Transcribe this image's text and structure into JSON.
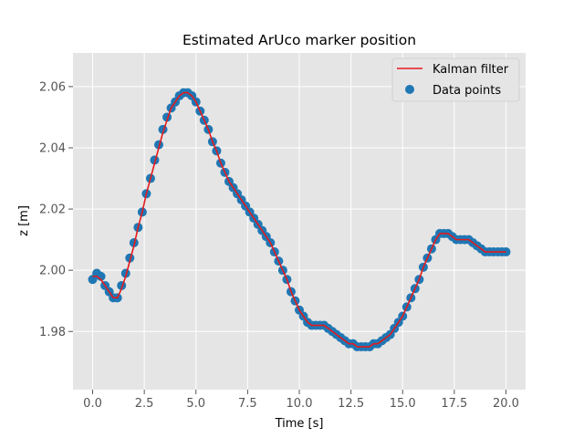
{
  "chart_data": {
    "type": "scatter",
    "title": "Estimated ArUco marker position",
    "xlabel": "Time [s]",
    "ylabel": "z [m]",
    "xlim": [
      -0.95,
      20.95
    ],
    "ylim": [
      1.961,
      2.071
    ],
    "x_ticks": [
      0,
      2.5,
      5,
      7.5,
      10,
      12.5,
      15,
      17.5,
      20
    ],
    "x_tick_labels": [
      "0.0",
      "2.5",
      "5.0",
      "7.5",
      "10.0",
      "12.5",
      "15.0",
      "17.5",
      "20.0"
    ],
    "y_ticks": [
      1.98,
      2.0,
      2.02,
      2.04,
      2.06
    ],
    "y_tick_labels": [
      "1.98",
      "2.00",
      "2.02",
      "2.04",
      "2.06"
    ],
    "grid": true,
    "legend_position": "top-right",
    "colors": {
      "plot_background": "#e5e5e5",
      "grid": "#ffffff",
      "kalman": "#e41a1c",
      "points": "#1f77b4"
    },
    "series": [
      {
        "name": "Data points",
        "kind": "scatter",
        "x": [
          0,
          0.2,
          0.4,
          0.6,
          0.8,
          1.0,
          1.2,
          1.4,
          1.6,
          1.8,
          2.0,
          2.2,
          2.4,
          2.6,
          2.8,
          3.0,
          3.2,
          3.4,
          3.6,
          3.8,
          4.0,
          4.2,
          4.4,
          4.6,
          4.8,
          5.0,
          5.2,
          5.4,
          5.6,
          5.8,
          6.0,
          6.2,
          6.4,
          6.6,
          6.8,
          7.0,
          7.2,
          7.4,
          7.6,
          7.8,
          8.0,
          8.2,
          8.4,
          8.6,
          8.8,
          9.0,
          9.2,
          9.4,
          9.6,
          9.8,
          10.0,
          10.2,
          10.4,
          10.6,
          10.8,
          11.0,
          11.2,
          11.4,
          11.6,
          11.8,
          12.0,
          12.2,
          12.4,
          12.6,
          12.8,
          13.0,
          13.2,
          13.4,
          13.6,
          13.8,
          14.0,
          14.2,
          14.4,
          14.6,
          14.8,
          15.0,
          15.2,
          15.4,
          15.6,
          15.8,
          16.0,
          16.2,
          16.4,
          16.6,
          16.8,
          17.0,
          17.2,
          17.4,
          17.6,
          17.8,
          18.0,
          18.2,
          18.4,
          18.6,
          18.8,
          19.0,
          19.2,
          19.4,
          19.6,
          19.8,
          20.0
        ],
        "y": [
          1.997,
          1.999,
          1.998,
          1.995,
          1.993,
          1.991,
          1.991,
          1.995,
          1.999,
          2.004,
          2.009,
          2.014,
          2.019,
          2.025,
          2.03,
          2.036,
          2.041,
          2.046,
          2.05,
          2.053,
          2.055,
          2.057,
          2.058,
          2.058,
          2.057,
          2.055,
          2.052,
          2.049,
          2.046,
          2.042,
          2.039,
          2.035,
          2.032,
          2.029,
          2.027,
          2.025,
          2.023,
          2.021,
          2.019,
          2.017,
          2.015,
          2.013,
          2.011,
          2.009,
          2.006,
          2.003,
          2.0,
          1.997,
          1.993,
          1.99,
          1.987,
          1.985,
          1.983,
          1.982,
          1.982,
          1.982,
          1.982,
          1.981,
          1.98,
          1.979,
          1.978,
          1.977,
          1.976,
          1.976,
          1.975,
          1.975,
          1.975,
          1.975,
          1.976,
          1.976,
          1.977,
          1.978,
          1.979,
          1.981,
          1.983,
          1.985,
          1.988,
          1.991,
          1.994,
          1.997,
          2.001,
          2.004,
          2.007,
          2.01,
          2.012,
          2.012,
          2.012,
          2.011,
          2.01,
          2.01,
          2.01,
          2.01,
          2.009,
          2.008,
          2.007,
          2.006,
          2.006,
          2.006,
          2.006,
          2.006,
          2.006
        ]
      },
      {
        "name": "Kalman filter",
        "kind": "line",
        "x": [
          0,
          0.2,
          0.4,
          0.6,
          0.8,
          1.0,
          1.2,
          1.4,
          1.6,
          1.8,
          2.0,
          2.2,
          2.4,
          2.6,
          2.8,
          3.0,
          3.2,
          3.4,
          3.6,
          3.8,
          4.0,
          4.2,
          4.4,
          4.6,
          4.8,
          5.0,
          5.2,
          5.4,
          5.6,
          5.8,
          6.0,
          6.2,
          6.4,
          6.6,
          6.8,
          7.0,
          7.2,
          7.4,
          7.6,
          7.8,
          8.0,
          8.2,
          8.4,
          8.6,
          8.8,
          9.0,
          9.2,
          9.4,
          9.6,
          9.8,
          10.0,
          10.2,
          10.4,
          10.6,
          10.8,
          11.0,
          11.2,
          11.4,
          11.6,
          11.8,
          12.0,
          12.2,
          12.4,
          12.6,
          12.8,
          13.0,
          13.2,
          13.4,
          13.6,
          13.8,
          14.0,
          14.2,
          14.4,
          14.6,
          14.8,
          15.0,
          15.2,
          15.4,
          15.6,
          15.8,
          16.0,
          16.2,
          16.4,
          16.6,
          16.8,
          17.0,
          17.2,
          17.4,
          17.6,
          17.8,
          18.0,
          18.2,
          18.4,
          18.6,
          18.8,
          19.0,
          19.2,
          19.4,
          19.6,
          19.8,
          20.0
        ],
        "y": [
          1.998,
          1.998,
          1.997,
          1.995,
          1.993,
          1.991,
          1.991,
          1.994,
          1.998,
          2.003,
          2.008,
          2.014,
          2.019,
          2.025,
          2.03,
          2.035,
          2.04,
          2.045,
          2.049,
          2.053,
          2.055,
          2.057,
          2.058,
          2.058,
          2.057,
          2.055,
          2.052,
          2.049,
          2.046,
          2.042,
          2.039,
          2.035,
          2.032,
          2.029,
          2.027,
          2.025,
          2.023,
          2.021,
          2.019,
          2.017,
          2.015,
          2.013,
          2.011,
          2.009,
          2.006,
          2.003,
          2.0,
          1.997,
          1.993,
          1.99,
          1.987,
          1.985,
          1.983,
          1.982,
          1.982,
          1.982,
          1.982,
          1.981,
          1.98,
          1.979,
          1.978,
          1.977,
          1.976,
          1.976,
          1.975,
          1.975,
          1.975,
          1.975,
          1.976,
          1.976,
          1.977,
          1.978,
          1.979,
          1.981,
          1.983,
          1.985,
          1.988,
          1.991,
          1.994,
          1.997,
          2.001,
          2.004,
          2.007,
          2.01,
          2.012,
          2.012,
          2.012,
          2.011,
          2.01,
          2.01,
          2.01,
          2.01,
          2.009,
          2.008,
          2.007,
          2.006,
          2.006,
          2.006,
          2.006,
          2.006,
          2.006
        ]
      }
    ]
  }
}
